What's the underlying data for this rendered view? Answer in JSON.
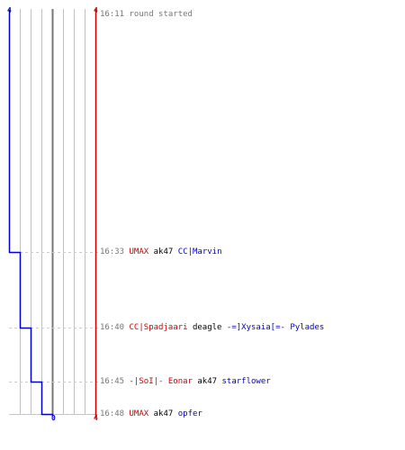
{
  "colors": {
    "team_a": "#0000cc",
    "team_b": "#cc0000",
    "grid": "#c0c0c0",
    "center": "#777777",
    "dash": "#cccccc",
    "time": "#777777",
    "text": "#000000"
  },
  "axis": {
    "left_max_label": "4",
    "right_max_label": "4",
    "bottom_left_label": "0",
    "bottom_right_label": "4"
  },
  "events": [
    {
      "time": "16:11",
      "text": "round started",
      "type": "start"
    },
    {
      "time": "16:33",
      "killer": "UMAX",
      "killer_team": "b",
      "weapon": "ak47",
      "victim": "CC|Marvin",
      "victim_team": "a"
    },
    {
      "time": "16:40",
      "killer": "CC|Spadjaari",
      "killer_team": "b",
      "weapon": "deagle",
      "victim": "-=]Xysaia[=- Pylades",
      "victim_team": "a"
    },
    {
      "time": "16:45",
      "killer": "-|SoI|- Eonar",
      "killer_team": "b",
      "weapon": "ak47",
      "victim": "starflower",
      "victim_team": "a"
    },
    {
      "time": "16:48",
      "killer": "UMAX",
      "killer_team": "b",
      "weapon": "ak47",
      "victim": "opfer",
      "victim_team": "a"
    }
  ],
  "alive_counts": {
    "team_a": [
      4,
      3,
      2,
      1,
      0
    ],
    "team_b": [
      4,
      4,
      4,
      4,
      4
    ]
  }
}
